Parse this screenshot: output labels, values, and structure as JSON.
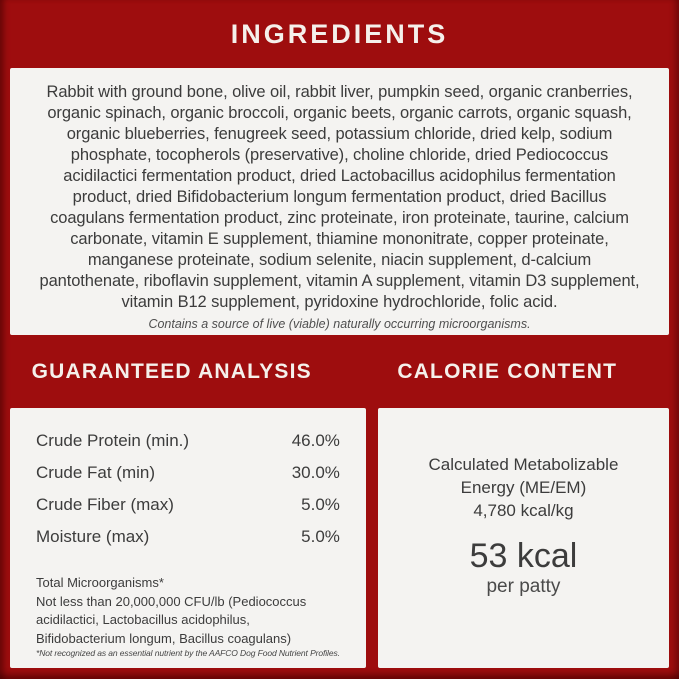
{
  "header": {
    "title": "INGREDIENTS"
  },
  "ingredients": {
    "text": "Rabbit with ground bone, olive oil, rabbit liver, pumpkin seed, organic cranberries, organic spinach, organic broccoli, organic beets, organic carrots, organic squash, organic blueberries, fenugreek seed, potassium chloride, dried kelp, sodium phosphate, tocopherols (preservative), choline chloride, dried Pediococcus acidilactici fermentation product, dried Lactobacillus acidophilus fermentation product, dried Bifidobacterium longum fermentation product, dried Bacillus coagulans fermentation product, zinc proteinate, iron proteinate, taurine, calcium carbonate, vitamin E supplement, thiamine mononitrate, copper proteinate, manganese proteinate, sodium selenite, niacin supplement, d-calcium pantothenate, riboflavin supplement, vitamin A supplement, vitamin D3 supplement, vitamin B12 supplement, pyridoxine hydrochloride, folic acid.",
    "note": "Contains a source of live (viable) naturally occurring microorganisms."
  },
  "guaranteed_analysis": {
    "title": "GUARANTEED ANALYSIS",
    "rows": [
      {
        "label": "Crude Protein (min.)",
        "value": "46.0%"
      },
      {
        "label": "Crude Fat (min)",
        "value": "30.0%"
      },
      {
        "label": "Crude Fiber (max)",
        "value": "5.0%"
      },
      {
        "label": "Moisture (max)",
        "value": "5.0%"
      }
    ],
    "microorganisms_title": "Total Microorganisms*",
    "microorganisms_detail": "Not less than 20,000,000 CFU/lb (Pediococcus acidilactici, Lactobacillus acidophilus, Bifidobacterium longum, Bacillus coagulans)",
    "footnote": "*Not recognized as an essential nutrient by the AAFCO Dog Food Nutrient Profiles."
  },
  "calorie_content": {
    "title": "CALORIE CONTENT",
    "me_label": "Calculated Metabolizable Energy (ME/EM)",
    "me_value": "4,780 kcal/kg",
    "kcal_value": "53 kcal",
    "kcal_unit": "per patty"
  },
  "colors": {
    "background": "#9E0D0E",
    "panel": "#F4F3F1",
    "text": "#3C3C3C",
    "heading_text": "#F5F0EB"
  }
}
